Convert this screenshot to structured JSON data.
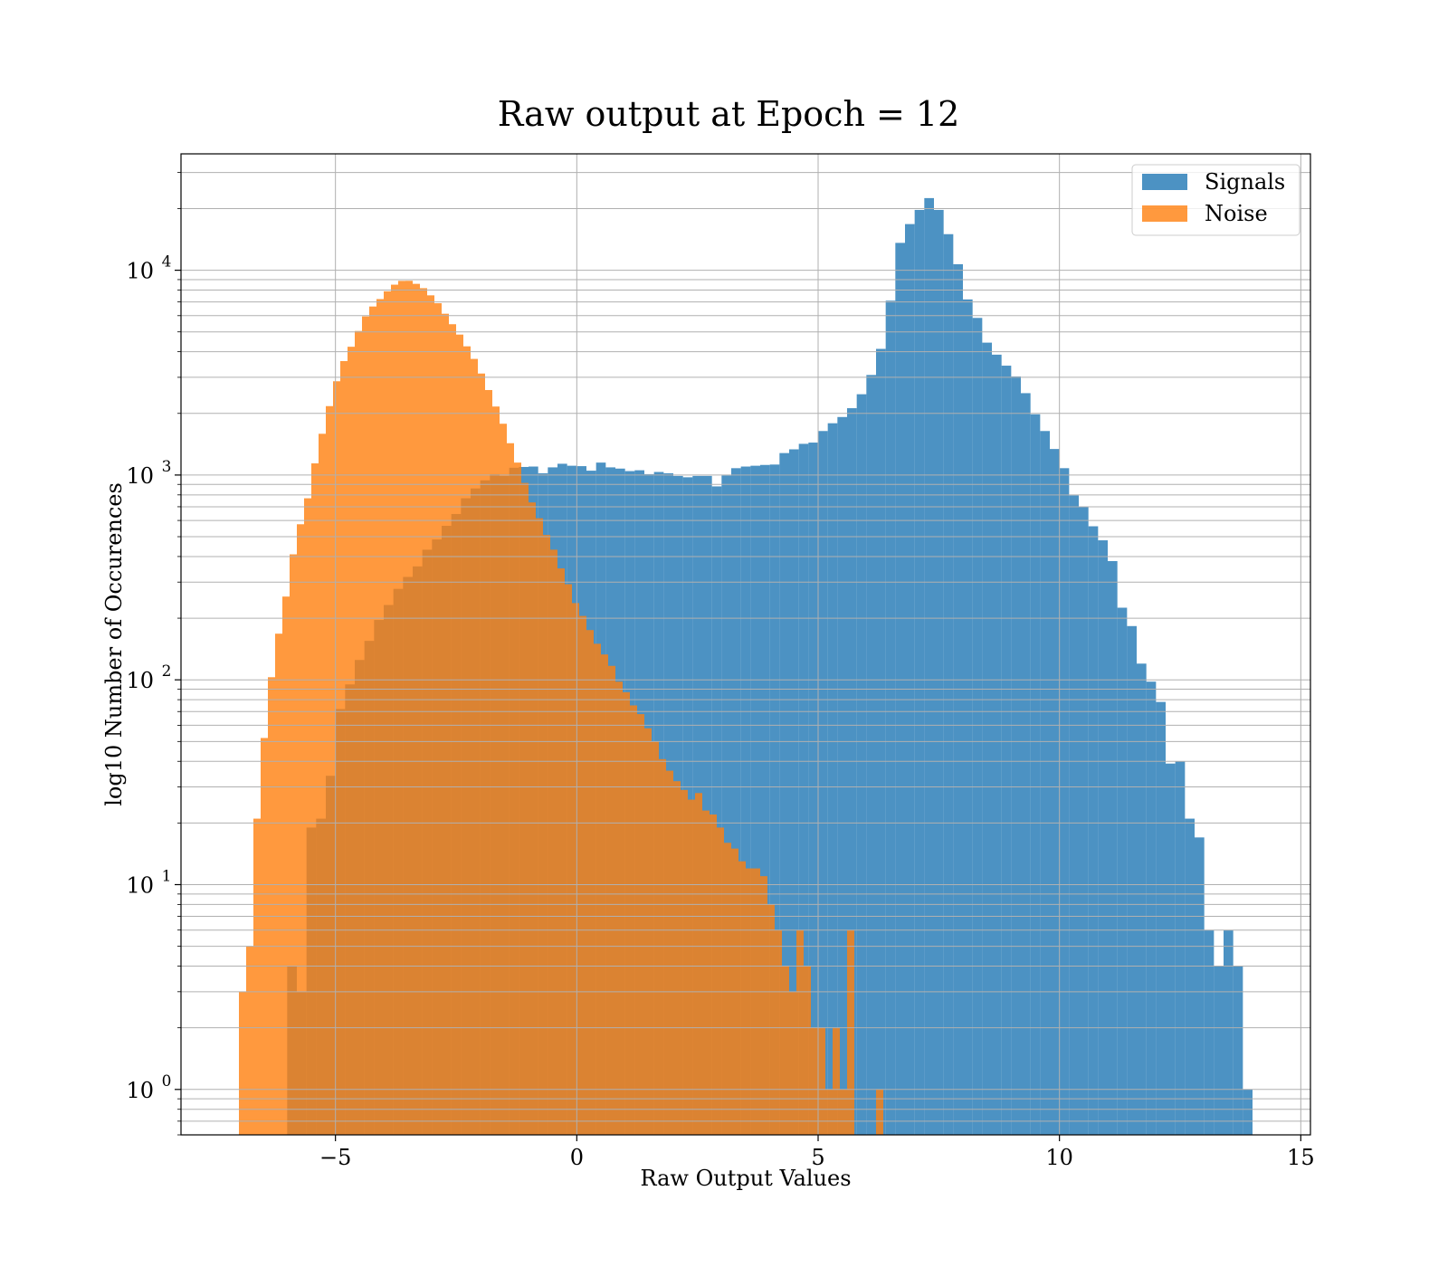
{
  "chart_data": {
    "type": "bar",
    "title": "Raw output at Epoch = 12",
    "xlabel": "Raw Output Values",
    "ylabel": "log10 Number of Occurences",
    "xlim": [
      -8.2,
      15.2
    ],
    "ylim": [
      0.6,
      37000
    ],
    "yscale": "log",
    "grid": true,
    "legend_position": "top-right",
    "xticks": [
      -5,
      0,
      5,
      10,
      15
    ],
    "xtick_labels": [
      "−5",
      "0",
      "5",
      "10",
      "15"
    ],
    "yticks": [
      1,
      10,
      100,
      1000,
      10000
    ],
    "ytick_labels": [
      {
        "base": "10",
        "exp": "0"
      },
      {
        "base": "10",
        "exp": "1"
      },
      {
        "base": "10",
        "exp": "2"
      },
      {
        "base": "10",
        "exp": "3"
      },
      {
        "base": "10",
        "exp": "4"
      }
    ],
    "series": [
      {
        "name": "Signals",
        "color": "#1f77b4",
        "bins": [
          [
            -6.0,
            -5.8,
            4
          ],
          [
            -5.8,
            -5.6,
            3
          ],
          [
            -5.6,
            -5.4,
            19
          ],
          [
            -5.4,
            -5.2,
            21
          ],
          [
            -5.2,
            -5.0,
            34
          ],
          [
            -5.0,
            -4.8,
            72
          ],
          [
            -4.8,
            -4.6,
            95
          ],
          [
            -4.6,
            -4.4,
            125
          ],
          [
            -4.4,
            -4.2,
            155
          ],
          [
            -4.2,
            -4.0,
            196
          ],
          [
            -4.0,
            -3.8,
            232
          ],
          [
            -3.8,
            -3.6,
            278
          ],
          [
            -3.6,
            -3.4,
            318
          ],
          [
            -3.4,
            -3.2,
            358
          ],
          [
            -3.2,
            -3.0,
            432
          ],
          [
            -3.0,
            -2.8,
            485
          ],
          [
            -2.8,
            -2.6,
            565
          ],
          [
            -2.6,
            -2.4,
            645
          ],
          [
            -2.4,
            -2.2,
            770
          ],
          [
            -2.2,
            -2.0,
            860
          ],
          [
            -2.0,
            -1.8,
            942
          ],
          [
            -1.8,
            -1.6,
            1010
          ],
          [
            -1.6,
            -1.4,
            990
          ],
          [
            -1.4,
            -1.2,
            1085
          ],
          [
            -1.2,
            -1.0,
            1095
          ],
          [
            -1.0,
            -0.8,
            1100
          ],
          [
            -0.8,
            -0.6,
            1020
          ],
          [
            -0.6,
            -0.4,
            1090
          ],
          [
            -0.4,
            -0.2,
            1135
          ],
          [
            -0.2,
            0.0,
            1110
          ],
          [
            0.0,
            0.2,
            1105
          ],
          [
            0.2,
            0.4,
            1050
          ],
          [
            0.4,
            0.6,
            1150
          ],
          [
            0.6,
            0.8,
            1090
          ],
          [
            0.8,
            1.0,
            1075
          ],
          [
            1.0,
            1.2,
            1045
          ],
          [
            1.2,
            1.4,
            1055
          ],
          [
            1.4,
            1.6,
            1010
          ],
          [
            1.6,
            1.8,
            1035
          ],
          [
            1.8,
            2.0,
            1020
          ],
          [
            2.0,
            2.2,
            990
          ],
          [
            2.2,
            2.4,
            975
          ],
          [
            2.4,
            2.6,
            990
          ],
          [
            2.6,
            2.8,
            990
          ],
          [
            2.8,
            3.0,
            880
          ],
          [
            3.0,
            3.2,
            995
          ],
          [
            3.2,
            3.4,
            1080
          ],
          [
            3.4,
            3.6,
            1100
          ],
          [
            3.6,
            3.8,
            1110
          ],
          [
            3.8,
            4.0,
            1120
          ],
          [
            4.0,
            4.2,
            1125
          ],
          [
            4.2,
            4.4,
            1280
          ],
          [
            4.4,
            4.6,
            1335
          ],
          [
            4.6,
            4.8,
            1420
          ],
          [
            4.8,
            5.0,
            1440
          ],
          [
            5.0,
            5.2,
            1640
          ],
          [
            5.2,
            5.4,
            1790
          ],
          [
            5.4,
            5.6,
            1920
          ],
          [
            5.6,
            5.8,
            2120
          ],
          [
            5.8,
            6.0,
            2480
          ],
          [
            6.0,
            6.2,
            3080
          ],
          [
            6.2,
            6.4,
            4130
          ],
          [
            6.4,
            6.6,
            7100
          ],
          [
            6.6,
            6.8,
            13600
          ],
          [
            6.8,
            7.0,
            16800
          ],
          [
            7.0,
            7.2,
            19700
          ],
          [
            7.2,
            7.4,
            22500
          ],
          [
            7.4,
            7.6,
            19700
          ],
          [
            7.6,
            7.8,
            15000
          ],
          [
            7.8,
            8.0,
            10700
          ],
          [
            8.0,
            8.2,
            7200
          ],
          [
            8.2,
            8.4,
            5850
          ],
          [
            8.4,
            8.6,
            4430
          ],
          [
            8.6,
            8.8,
            3870
          ],
          [
            8.8,
            9.0,
            3420
          ],
          [
            9.0,
            9.2,
            3030
          ],
          [
            9.2,
            9.4,
            2510
          ],
          [
            9.4,
            9.6,
            1980
          ],
          [
            9.6,
            9.8,
            1640
          ],
          [
            9.8,
            10.0,
            1340
          ],
          [
            10.0,
            10.2,
            1080
          ],
          [
            10.2,
            10.4,
            795
          ],
          [
            10.4,
            10.6,
            700
          ],
          [
            10.6,
            10.8,
            562
          ],
          [
            10.8,
            11.0,
            480
          ],
          [
            11.0,
            11.2,
            380
          ],
          [
            11.2,
            11.4,
            225
          ],
          [
            11.4,
            11.6,
            183
          ],
          [
            11.6,
            11.8,
            120
          ],
          [
            11.8,
            12.0,
            98
          ],
          [
            12.0,
            12.2,
            78
          ],
          [
            12.2,
            12.4,
            39
          ],
          [
            12.4,
            12.6,
            40
          ],
          [
            12.6,
            12.8,
            21
          ],
          [
            12.8,
            13.0,
            17
          ],
          [
            13.0,
            13.2,
            6
          ],
          [
            13.2,
            13.4,
            4
          ],
          [
            13.4,
            13.6,
            6
          ],
          [
            13.6,
            13.8,
            4
          ],
          [
            13.8,
            14.0,
            1
          ]
        ]
      },
      {
        "name": "Noise",
        "color": "#ff7f0e",
        "bins": [
          [
            -7.0,
            -6.85,
            3
          ],
          [
            -6.85,
            -6.7,
            5
          ],
          [
            -6.7,
            -6.55,
            21
          ],
          [
            -6.55,
            -6.4,
            52
          ],
          [
            -6.4,
            -6.25,
            103
          ],
          [
            -6.25,
            -6.1,
            168
          ],
          [
            -6.1,
            -5.95,
            255
          ],
          [
            -5.95,
            -5.8,
            410
          ],
          [
            -5.8,
            -5.65,
            575
          ],
          [
            -5.65,
            -5.5,
            770
          ],
          [
            -5.5,
            -5.35,
            1140
          ],
          [
            -5.35,
            -5.2,
            1590
          ],
          [
            -5.2,
            -5.05,
            2170
          ],
          [
            -5.05,
            -4.9,
            2870
          ],
          [
            -4.9,
            -4.75,
            3600
          ],
          [
            -4.75,
            -4.6,
            4230
          ],
          [
            -4.6,
            -4.45,
            5050
          ],
          [
            -4.45,
            -4.3,
            5950
          ],
          [
            -4.3,
            -4.15,
            6650
          ],
          [
            -4.15,
            -4.0,
            7230
          ],
          [
            -4.0,
            -3.85,
            7890
          ],
          [
            -3.85,
            -3.7,
            8500
          ],
          [
            -3.7,
            -3.55,
            8870
          ],
          [
            -3.55,
            -3.4,
            8880
          ],
          [
            -3.4,
            -3.25,
            8580
          ],
          [
            -3.25,
            -3.1,
            8170
          ],
          [
            -3.1,
            -2.95,
            7540
          ],
          [
            -2.95,
            -2.8,
            6900
          ],
          [
            -2.8,
            -2.65,
            6130
          ],
          [
            -2.65,
            -2.5,
            5450
          ],
          [
            -2.5,
            -2.35,
            4850
          ],
          [
            -2.35,
            -2.2,
            4250
          ],
          [
            -2.2,
            -2.05,
            3690
          ],
          [
            -2.05,
            -1.9,
            3130
          ],
          [
            -1.9,
            -1.75,
            2600
          ],
          [
            -1.75,
            -1.6,
            2160
          ],
          [
            -1.6,
            -1.45,
            1780
          ],
          [
            -1.45,
            -1.3,
            1430
          ],
          [
            -1.3,
            -1.15,
            1150
          ],
          [
            -1.15,
            -1.0,
            915
          ],
          [
            -1.0,
            -0.85,
            735
          ],
          [
            -0.85,
            -0.7,
            615
          ],
          [
            -0.7,
            -0.55,
            510
          ],
          [
            -0.55,
            -0.4,
            432
          ],
          [
            -0.4,
            -0.25,
            350
          ],
          [
            -0.25,
            -0.1,
            293
          ],
          [
            -0.1,
            0.05,
            237
          ],
          [
            0.05,
            0.2,
            205
          ],
          [
            0.2,
            0.35,
            175
          ],
          [
            0.35,
            0.5,
            150
          ],
          [
            0.5,
            0.65,
            133
          ],
          [
            0.65,
            0.8,
            117
          ],
          [
            0.8,
            0.95,
            98
          ],
          [
            0.95,
            1.1,
            87
          ],
          [
            1.1,
            1.25,
            75
          ],
          [
            1.25,
            1.4,
            68
          ],
          [
            1.4,
            1.55,
            58
          ],
          [
            1.55,
            1.7,
            50
          ],
          [
            1.7,
            1.85,
            41
          ],
          [
            1.85,
            2.0,
            36
          ],
          [
            2.0,
            2.15,
            32
          ],
          [
            2.15,
            2.3,
            29
          ],
          [
            2.3,
            2.45,
            26
          ],
          [
            2.45,
            2.6,
            28
          ],
          [
            2.6,
            2.75,
            23
          ],
          [
            2.75,
            2.9,
            22
          ],
          [
            2.9,
            3.05,
            19
          ],
          [
            3.05,
            3.2,
            16
          ],
          [
            3.2,
            3.35,
            15
          ],
          [
            3.35,
            3.5,
            13
          ],
          [
            3.5,
            3.65,
            12
          ],
          [
            3.65,
            3.8,
            12
          ],
          [
            3.8,
            3.95,
            11
          ],
          [
            3.95,
            4.1,
            8
          ],
          [
            4.1,
            4.25,
            6
          ],
          [
            4.25,
            4.4,
            4
          ],
          [
            4.4,
            4.55,
            3
          ],
          [
            4.55,
            4.7,
            6
          ],
          [
            4.7,
            4.85,
            4
          ],
          [
            4.85,
            5.0,
            2
          ],
          [
            5.0,
            5.15,
            2
          ],
          [
            5.15,
            5.3,
            1
          ],
          [
            5.3,
            5.45,
            2
          ],
          [
            5.45,
            5.6,
            1
          ],
          [
            5.6,
            5.75,
            6
          ],
          [
            5.75,
            5.9,
            0
          ],
          [
            5.9,
            6.05,
            0
          ],
          [
            6.05,
            6.2,
            0
          ],
          [
            6.2,
            6.35,
            1
          ],
          [
            6.35,
            6.5,
            0
          ]
        ]
      }
    ]
  }
}
